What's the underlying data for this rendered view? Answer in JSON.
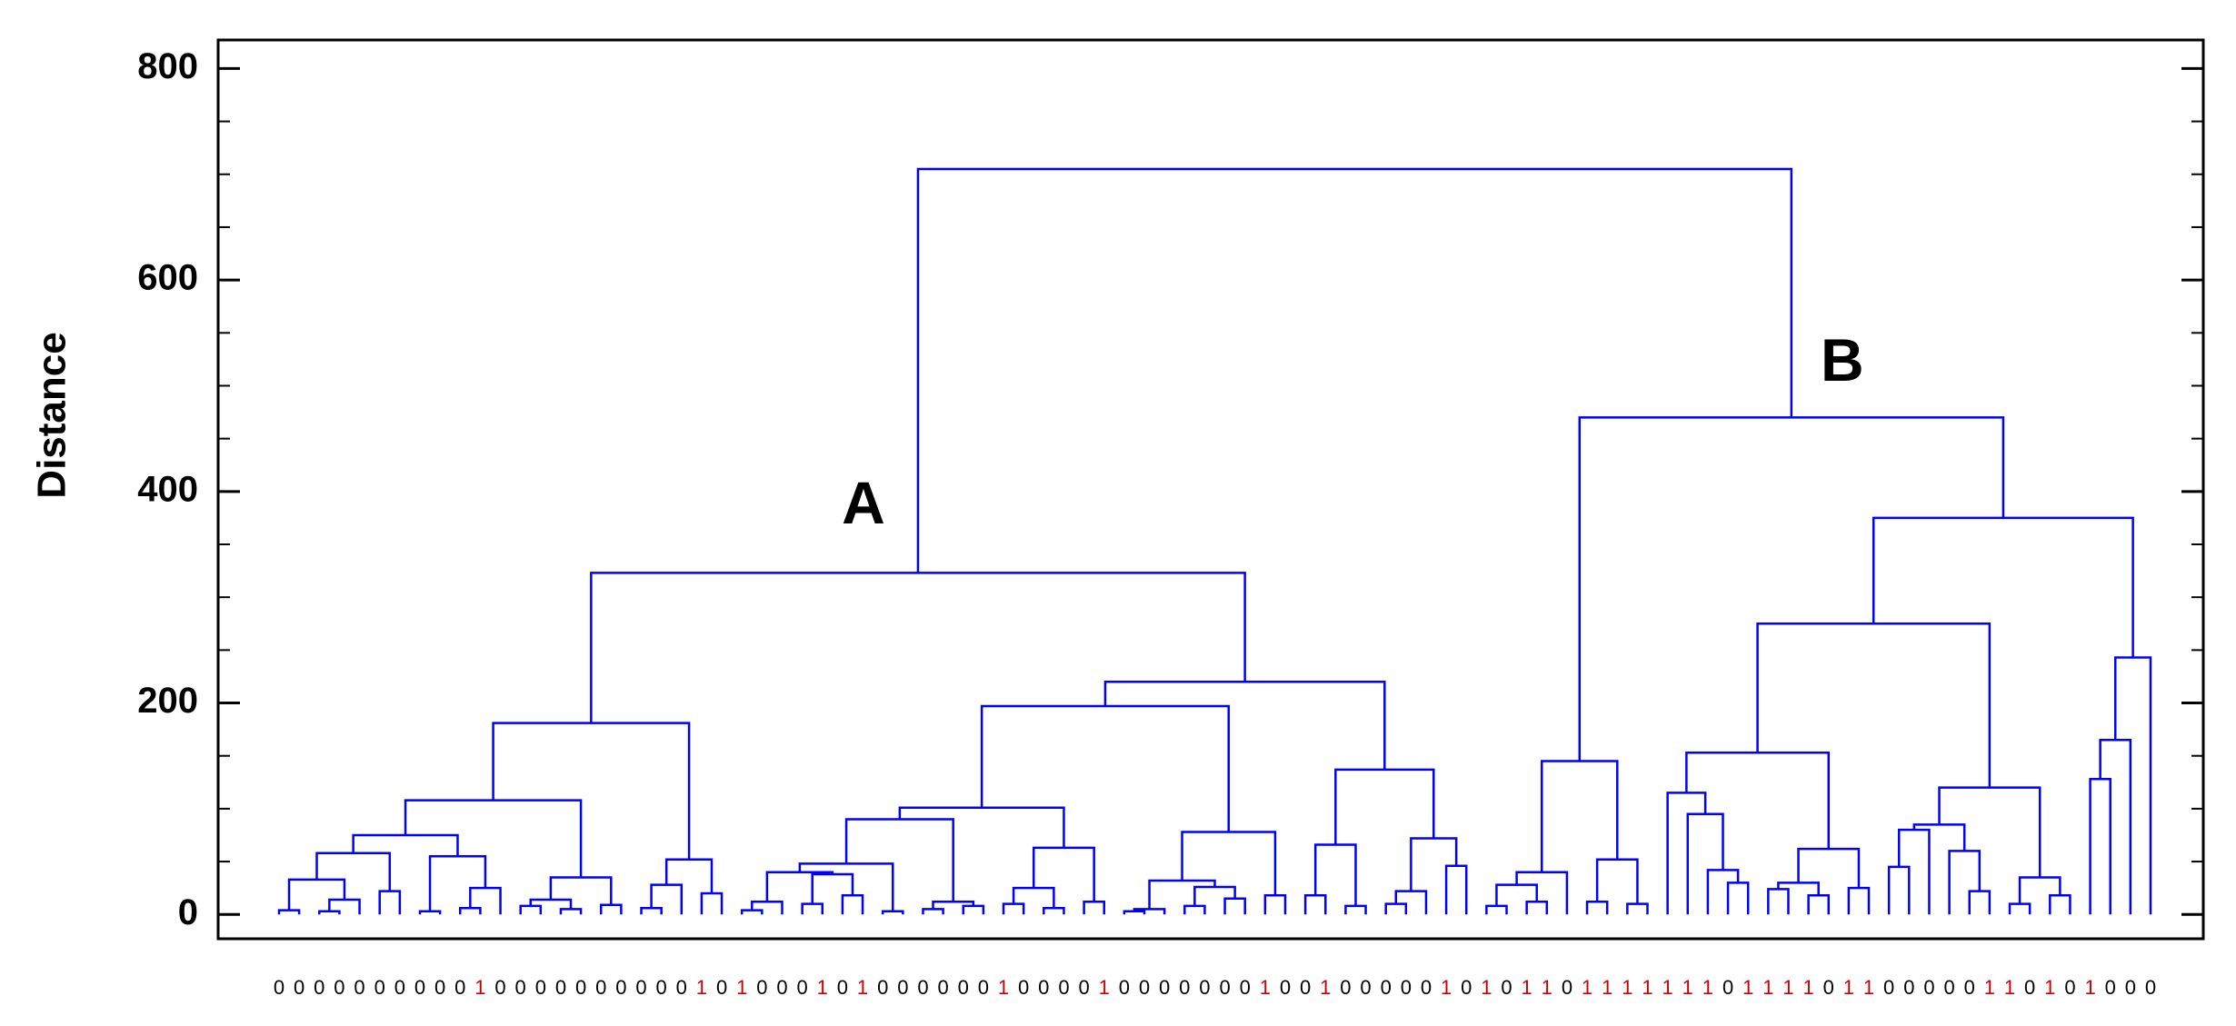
{
  "chart_data": {
    "type": "dendrogram",
    "y_label": "Distance",
    "ylim": [
      -23,
      827
    ],
    "yticks": [
      0,
      200,
      400,
      600,
      800
    ],
    "yminor_ticks": [
      50,
      100,
      150,
      250,
      300,
      350,
      450,
      500,
      550,
      650,
      700,
      750
    ],
    "color": "#0000ff",
    "label_colors": {
      "0": "#000000",
      "1": "#cc0000"
    },
    "annotations": [
      "A",
      "B"
    ],
    "tree": [
      705,
      [
        323,
        [
          181,
          [
            108,
            [
              75,
              [
                58,
                [
                  33,
                  [
                    4,
                    "0",
                    "0"
                  ],
                  [
                    14,
                    [
                      3,
                      "0",
                      "0"
                    ],
                    "0"
                  ]
                ],
                [
                  22,
                  "0",
                  "0"
                ]
              ],
              [
                55,
                [
                  3,
                  "0",
                  "0"
                ],
                [
                  25,
                  [
                    6,
                    "0",
                    "1"
                  ],
                  "0"
                ]
              ]
            ],
            [
              35,
              [
                14,
                [
                  8,
                  "0",
                  "0"
                ],
                [
                  5,
                  "0",
                  "0"
                ]
              ],
              [
                9,
                "0",
                "0"
              ]
            ]
          ],
          [
            52,
            [
              28,
              [
                6,
                "0",
                "0"
              ],
              "0"
            ],
            [
              20,
              "1",
              "0"
            ]
          ]
        ],
        [
          220,
          [
            197,
            [
              101,
              [
                90,
                [
                  48,
                  [
                    40,
                    [
                      12,
                      [
                        4,
                        "1",
                        "0"
                      ],
                      "0"
                    ],
                    [
                      38,
                      [
                        10,
                        "0",
                        "1"
                      ],
                      [
                        18,
                        "0",
                        "1"
                      ]
                    ]
                  ],
                  [
                    3,
                    "0",
                    "0"
                  ]
                ],
                [
                  12,
                  [
                    5,
                    "0",
                    "0"
                  ],
                  [
                    8,
                    "0",
                    "0"
                  ]
                ]
              ],
              [
                63,
                [
                  25,
                  [
                    10,
                    "1",
                    "0"
                  ],
                  [
                    6,
                    "0",
                    "0"
                  ]
                ],
                [
                  12,
                  "0",
                  "1"
                ]
              ]
            ],
            [
              78,
              [
                32,
                [
                  5,
                  [
                    3,
                    "0",
                    "0"
                  ],
                  "0"
                ],
                [
                  26,
                  [
                    8,
                    "0",
                    "0"
                  ],
                  [
                    15,
                    "0",
                    "0"
                  ]
                ]
              ],
              [
                18,
                "1",
                "0"
              ]
            ]
          ],
          [
            137,
            [
              66,
              [
                18,
                "0",
                "1"
              ],
              [
                8,
                "0",
                "0"
              ]
            ],
            [
              72,
              [
                22,
                [
                  10,
                  "0",
                  "0"
                ],
                "0"
              ],
              [
                46,
                "1",
                "0"
              ]
            ]
          ]
        ]
      ],
      [
        470,
        [
          145,
          [
            40,
            [
              28,
              [
                8,
                "1",
                "0"
              ],
              [
                12,
                "1",
                "1"
              ]
            ],
            "0"
          ],
          [
            52,
            [
              12,
              "1",
              "1"
            ],
            [
              10,
              "1",
              "1"
            ]
          ]
        ],
        [
          375,
          [
            275,
            [
              153,
              [
                115,
                "1",
                [
                  95,
                  "1",
                  [
                    42,
                    "1",
                    [
                      30,
                      "0",
                      "1"
                    ]
                  ]
                ]
              ],
              [
                62,
                [
                  30,
                  [
                    24,
                    "1",
                    "1"
                  ],
                  [
                    18,
                    "1",
                    "0"
                  ]
                ],
                [
                  25,
                  "1",
                  "1"
                ]
              ]
            ],
            [
              120,
              [
                85,
                [
                  80,
                  [
                    45,
                    "0",
                    "0"
                  ],
                  "0"
                ],
                [
                  60,
                  "0",
                  [
                    22,
                    "0",
                    "1"
                  ]
                ]
              ],
              [
                35,
                [
                  10,
                  "1",
                  "0"
                ],
                [
                  18,
                  "1",
                  "0"
                ]
              ]
            ]
          ],
          [
            243,
            [
              165,
              [
                128,
                "1",
                "0"
              ],
              "0"
            ],
            "0"
          ]
        ]
      ]
    ]
  }
}
